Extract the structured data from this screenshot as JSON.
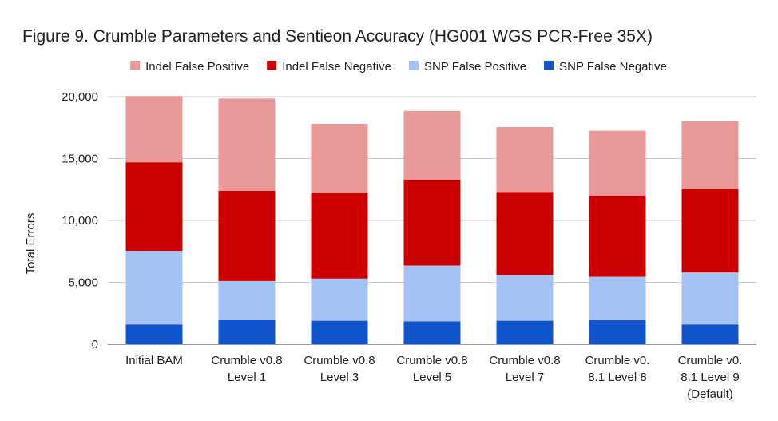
{
  "chart_data": {
    "type": "bar",
    "stacked": true,
    "title": "Figure 9. Crumble Parameters and Sentieon Accuracy (HG001 WGS PCR-Free 35X)",
    "ylabel": "Total Errors",
    "xlabel": "",
    "ylim": [
      0,
      20000
    ],
    "yticks": [
      "0",
      "5,000",
      "10,000",
      "15,000",
      "20,000"
    ],
    "ytick_values": [
      0,
      5000,
      10000,
      15000,
      20000
    ],
    "grid": true,
    "legend_position": "top",
    "categories": [
      [
        "Initial BAM"
      ],
      [
        "Crumble v0.8",
        "Level 1"
      ],
      [
        "Crumble v0.8",
        "Level 3"
      ],
      [
        "Crumble v0.8",
        "Level 5"
      ],
      [
        "Crumble v0.8",
        "Level 7"
      ],
      [
        "Crumble v0.",
        "8.1 Level 8"
      ],
      [
        "Crumble v0.",
        "8.1 Level 9",
        "(Default)"
      ]
    ],
    "legend_order": [
      "Indel False Positive",
      "Indel False Negative",
      "SNP False Positive",
      "SNP False Negative"
    ],
    "series": [
      {
        "name": "SNP False Negative",
        "color": "#1155cc",
        "values": [
          1600,
          2000,
          1900,
          1850,
          1900,
          1950,
          1600
        ]
      },
      {
        "name": "SNP False Positive",
        "color": "#a4c2f4",
        "values": [
          5950,
          3100,
          3400,
          4500,
          3700,
          3500,
          4200
        ]
      },
      {
        "name": "Indel False Negative",
        "color": "#cc0000",
        "values": [
          7150,
          7300,
          6950,
          6950,
          6700,
          6550,
          6750
        ]
      },
      {
        "name": "Indel False Positive",
        "color": "#ea9999",
        "values": [
          5350,
          7450,
          5550,
          5550,
          5250,
          5250,
          5450
        ]
      }
    ]
  }
}
